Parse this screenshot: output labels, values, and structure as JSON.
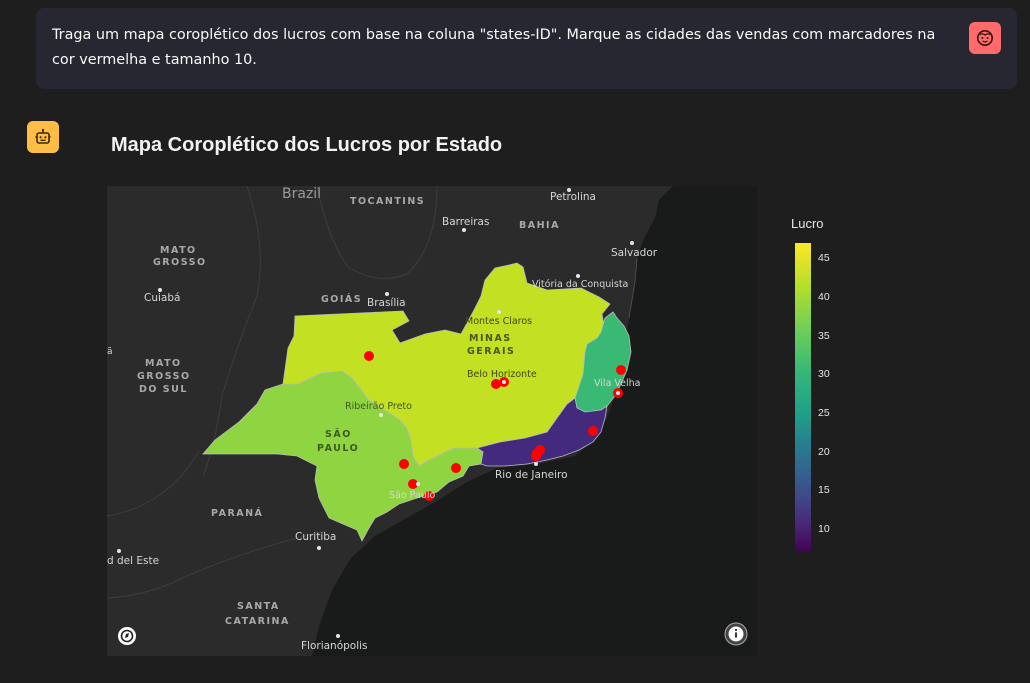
{
  "user_message": {
    "text": "Traga um mapa coroplético dos lucros com base na coluna \"states-ID\". Marque as cidades das vendas com marcadores na cor vermelha e tamanho 10."
  },
  "assistant": {
    "chart_title": "Mapa Coroplético dos Lucros por Estado"
  },
  "colors": {
    "background": "#1e1e1e",
    "user_bubble": "#262730",
    "user_avatar": "#ff6b6b",
    "bot_avatar": "#ffbd45",
    "marker": "#ff0000",
    "water": "#191a1a",
    "land": "#2b2b2b"
  },
  "map_labels": {
    "country": "Brazil",
    "tocantins": "TOCANTINS",
    "bahia": "BAHIA",
    "petrolina": "Petrolina",
    "barreiras": "Barreiras",
    "salvador": "Salvador",
    "mato_grosso_1": "MATO",
    "mato_grosso_2": "GROSSO",
    "cuiaba": "Cuiabá",
    "goias": "GOIÁS",
    "brasilia": "Brasília",
    "vitoria_conquista": "Vitória da Conquista",
    "montes_claros": "Montes Claros",
    "minas_1": "MINAS",
    "minas_2": "GERAIS",
    "ms_1": "MATO",
    "ms_2": "GROSSO",
    "ms_3": "DO SUL",
    "belo_horizonte": "Belo Horizonte",
    "vila_velha": "Vila Velha",
    "ribeirao_preto": "Ribeirão Preto",
    "sp_1": "SÃO",
    "sp_2": "PAULO",
    "rio": "Rio de Janeiro",
    "sao_paulo": "São Paulo",
    "parana": "PARANÁ",
    "curitiba": "Curitiba",
    "del_este": "d del Este",
    "sc_1": "SANTA",
    "sc_2": "CATARINA",
    "florianopolis": "Florianópolis",
    "edge_char": "ã"
  },
  "chart_data": {
    "type": "choropleth_map",
    "title": "Mapa Coroplético dos Lucros por Estado",
    "colorbar": {
      "title": "Lucro",
      "colorscale": "Viridis",
      "range": [
        7,
        47
      ],
      "ticks": [
        10,
        15,
        20,
        25,
        30,
        35,
        40,
        45
      ]
    },
    "regions": [
      {
        "state": "MG",
        "value": 43,
        "color": "#c3e022"
      },
      {
        "state": "SP",
        "value": 40,
        "color": "#8fd541"
      },
      {
        "state": "ES",
        "value": 34,
        "color": "#39b973"
      },
      {
        "state": "RJ",
        "value": 8,
        "color": "#442a7c"
      }
    ],
    "markers": {
      "color": "red",
      "size": 10,
      "count": 13
    }
  }
}
